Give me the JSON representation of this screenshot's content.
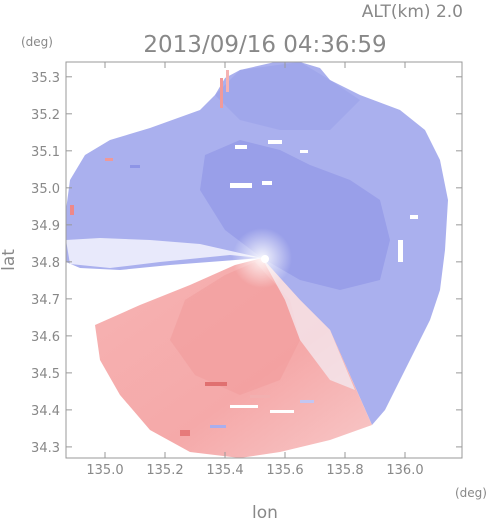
{
  "header": {
    "altitude_label": "ALT(km) 2.0",
    "timestamp": "2013/09/16 04:36:59",
    "lat_unit": "(deg)",
    "lon_unit": "(deg)"
  },
  "chart_data": {
    "type": "heatmap",
    "xlabel": "lon",
    "ylabel": "lat",
    "xlim": [
      134.87,
      136.19
    ],
    "ylim": [
      34.27,
      35.34
    ],
    "x_ticks": [
      135.0,
      135.2,
      135.4,
      135.6,
      135.8,
      136.0
    ],
    "x_tick_labels": [
      "135.0",
      "135.2",
      "135.4",
      "135.6",
      "135.8",
      "136.0"
    ],
    "y_ticks": [
      34.3,
      34.4,
      34.5,
      34.6,
      34.7,
      34.8,
      34.9,
      35.0,
      35.1,
      35.2,
      35.3
    ],
    "y_tick_labels": [
      "34.3",
      "34.4",
      "34.5",
      "34.6",
      "34.7",
      "34.8",
      "34.9",
      "35.0",
      "35.1",
      "35.2",
      "35.3"
    ],
    "radar_center": {
      "lon": 135.52,
      "lat": 34.82
    },
    "grid": false,
    "colors": {
      "approaching": "#7f86e8",
      "receding": "#ee7f7f",
      "neutral": "#ffffff",
      "axis": "#999999"
    }
  }
}
